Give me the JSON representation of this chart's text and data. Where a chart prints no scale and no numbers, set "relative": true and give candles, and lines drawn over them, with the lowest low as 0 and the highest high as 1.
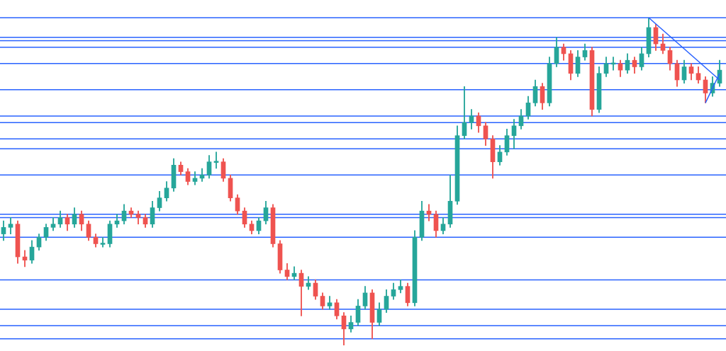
{
  "chart_data": {
    "type": "candlestick",
    "relative": true,
    "legend": false,
    "marker": "none",
    "categories": [
      null,
      null,
      null,
      null,
      null,
      null,
      null,
      null,
      null,
      null,
      null,
      null,
      null,
      null,
      null,
      null,
      null,
      null,
      null,
      null,
      null,
      null,
      null,
      null,
      null,
      null,
      null,
      null,
      null,
      null,
      null,
      null,
      null,
      null,
      null,
      null,
      null,
      null,
      null,
      null,
      null,
      null,
      null,
      null,
      null,
      null,
      null,
      null,
      null,
      null,
      null,
      null,
      null,
      null,
      null,
      null,
      null,
      null,
      null,
      null,
      null,
      null,
      null,
      null,
      null,
      null,
      null,
      null,
      null,
      null,
      null,
      null,
      null,
      null,
      null,
      null,
      null,
      null,
      null,
      null,
      null,
      null,
      null,
      null,
      null,
      null,
      null,
      null,
      null,
      null,
      null,
      null,
      null,
      null,
      null,
      null,
      null,
      null,
      null,
      null,
      null,
      null
    ],
    "series": [
      {
        "type": "candlestick",
        "ohlc": [
          [
            0.34,
            0.38,
            0.32,
            0.36
          ],
          [
            0.36,
            0.39,
            0.34,
            0.37
          ],
          [
            0.37,
            0.38,
            0.25,
            0.27
          ],
          [
            0.27,
            0.29,
            0.24,
            0.26
          ],
          [
            0.26,
            0.32,
            0.25,
            0.3
          ],
          [
            0.3,
            0.34,
            0.29,
            0.33
          ],
          [
            0.33,
            0.37,
            0.32,
            0.36
          ],
          [
            0.36,
            0.39,
            0.35,
            0.37
          ],
          [
            0.37,
            0.41,
            0.36,
            0.39
          ],
          [
            0.39,
            0.4,
            0.35,
            0.37
          ],
          [
            0.37,
            0.42,
            0.36,
            0.4
          ],
          [
            0.4,
            0.41,
            0.35,
            0.37
          ],
          [
            0.37,
            0.38,
            0.32,
            0.33
          ],
          [
            0.33,
            0.34,
            0.3,
            0.31
          ],
          [
            0.31,
            0.33,
            0.3,
            0.31
          ],
          [
            0.31,
            0.38,
            0.3,
            0.37
          ],
          [
            0.37,
            0.4,
            0.36,
            0.38
          ],
          [
            0.38,
            0.43,
            0.37,
            0.41
          ],
          [
            0.41,
            0.42,
            0.39,
            0.4
          ],
          [
            0.4,
            0.41,
            0.37,
            0.39
          ],
          [
            0.39,
            0.4,
            0.36,
            0.37
          ],
          [
            0.37,
            0.44,
            0.36,
            0.42
          ],
          [
            0.42,
            0.47,
            0.41,
            0.45
          ],
          [
            0.45,
            0.5,
            0.44,
            0.48
          ],
          [
            0.48,
            0.57,
            0.47,
            0.55
          ],
          [
            0.55,
            0.56,
            0.52,
            0.53
          ],
          [
            0.53,
            0.54,
            0.49,
            0.5
          ],
          [
            0.5,
            0.53,
            0.49,
            0.51
          ],
          [
            0.51,
            0.54,
            0.5,
            0.52
          ],
          [
            0.52,
            0.58,
            0.51,
            0.56
          ],
          [
            0.56,
            0.59,
            0.54,
            0.56
          ],
          [
            0.56,
            0.57,
            0.5,
            0.51
          ],
          [
            0.51,
            0.52,
            0.44,
            0.45
          ],
          [
            0.45,
            0.46,
            0.4,
            0.41
          ],
          [
            0.41,
            0.42,
            0.36,
            0.37
          ],
          [
            0.37,
            0.38,
            0.34,
            0.35
          ],
          [
            0.35,
            0.39,
            0.34,
            0.38
          ],
          [
            0.38,
            0.44,
            0.37,
            0.42
          ],
          [
            0.42,
            0.43,
            0.3,
            0.31
          ],
          [
            0.31,
            0.32,
            0.22,
            0.23
          ],
          [
            0.23,
            0.25,
            0.2,
            0.21
          ],
          [
            0.21,
            0.24,
            0.2,
            0.22
          ],
          [
            0.22,
            0.23,
            0.09,
            0.18
          ],
          [
            0.18,
            0.21,
            0.17,
            0.19
          ],
          [
            0.19,
            0.2,
            0.14,
            0.15
          ],
          [
            0.15,
            0.16,
            0.11,
            0.12
          ],
          [
            0.12,
            0.15,
            0.11,
            0.13
          ],
          [
            0.13,
            0.14,
            0.08,
            0.09
          ],
          [
            0.09,
            0.1,
            0.0,
            0.05
          ],
          [
            0.05,
            0.09,
            0.04,
            0.07
          ],
          [
            0.07,
            0.14,
            0.06,
            0.12
          ],
          [
            0.12,
            0.18,
            0.11,
            0.16
          ],
          [
            0.16,
            0.17,
            0.02,
            0.07
          ],
          [
            0.07,
            0.13,
            0.06,
            0.11
          ],
          [
            0.11,
            0.17,
            0.1,
            0.15
          ],
          [
            0.15,
            0.19,
            0.14,
            0.17
          ],
          [
            0.17,
            0.2,
            0.16,
            0.18
          ],
          [
            0.18,
            0.19,
            0.12,
            0.13
          ],
          [
            0.13,
            0.35,
            0.12,
            0.33
          ],
          [
            0.33,
            0.44,
            0.32,
            0.41
          ],
          [
            0.41,
            0.43,
            0.38,
            0.4
          ],
          [
            0.4,
            0.41,
            0.33,
            0.35
          ],
          [
            0.35,
            0.39,
            0.34,
            0.37
          ],
          [
            0.37,
            0.52,
            0.36,
            0.44
          ],
          [
            0.44,
            0.67,
            0.43,
            0.64
          ],
          [
            0.64,
            0.79,
            0.63,
            0.68
          ],
          [
            0.68,
            0.72,
            0.66,
            0.7
          ],
          [
            0.7,
            0.71,
            0.65,
            0.67
          ],
          [
            0.67,
            0.68,
            0.61,
            0.63
          ],
          [
            0.63,
            0.64,
            0.51,
            0.56
          ],
          [
            0.56,
            0.61,
            0.55,
            0.59
          ],
          [
            0.59,
            0.66,
            0.58,
            0.64
          ],
          [
            0.64,
            0.69,
            0.6,
            0.67
          ],
          [
            0.67,
            0.72,
            0.66,
            0.7
          ],
          [
            0.7,
            0.76,
            0.69,
            0.74
          ],
          [
            0.74,
            0.81,
            0.73,
            0.79
          ],
          [
            0.79,
            0.8,
            0.72,
            0.74
          ],
          [
            0.74,
            0.88,
            0.73,
            0.86
          ],
          [
            0.86,
            0.94,
            0.85,
            0.91
          ],
          [
            0.91,
            0.92,
            0.87,
            0.89
          ],
          [
            0.89,
            0.9,
            0.81,
            0.83
          ],
          [
            0.83,
            0.9,
            0.82,
            0.88
          ],
          [
            0.88,
            0.92,
            0.87,
            0.9
          ],
          [
            0.9,
            0.91,
            0.7,
            0.72
          ],
          [
            0.72,
            0.85,
            0.71,
            0.83
          ],
          [
            0.83,
            0.88,
            0.82,
            0.86
          ],
          [
            0.86,
            0.88,
            0.84,
            0.86
          ],
          [
            0.86,
            0.87,
            0.82,
            0.84
          ],
          [
            0.84,
            0.89,
            0.83,
            0.87
          ],
          [
            0.87,
            0.88,
            0.83,
            0.85
          ],
          [
            0.85,
            0.91,
            0.84,
            0.89
          ],
          [
            0.89,
            1.0,
            0.88,
            0.97
          ],
          [
            0.97,
            0.98,
            0.9,
            0.92
          ],
          [
            0.92,
            0.95,
            0.89,
            0.9
          ],
          [
            0.9,
            0.91,
            0.84,
            0.86
          ],
          [
            0.86,
            0.87,
            0.79,
            0.81
          ],
          [
            0.81,
            0.87,
            0.8,
            0.85
          ],
          [
            0.85,
            0.86,
            0.81,
            0.83
          ],
          [
            0.83,
            0.85,
            0.8,
            0.81
          ],
          [
            0.81,
            0.82,
            0.74,
            0.77
          ],
          [
            0.77,
            0.82,
            0.76,
            0.8
          ],
          [
            0.8,
            0.87,
            0.79,
            0.84
          ]
        ],
        "colors": [
          "#26a69a",
          "#26a69a",
          "#ef5350",
          "#ef5350",
          "#26a69a",
          "#26a69a",
          "#26a69a",
          "#26a69a",
          "#26a69a",
          "#ef5350",
          "#26a69a",
          "#ef5350",
          "#ef5350",
          "#ef5350",
          "#26a69a",
          "#26a69a",
          "#26a69a",
          "#26a69a",
          "#ef5350",
          "#ef5350",
          "#ef5350",
          "#26a69a",
          "#26a69a",
          "#26a69a",
          "#26a69a",
          "#ef5350",
          "#ef5350",
          "#26a69a",
          "#26a69a",
          "#26a69a",
          "#26a69a",
          "#ef5350",
          "#ef5350",
          "#ef5350",
          "#ef5350",
          "#ef5350",
          "#26a69a",
          "#26a69a",
          "#ef5350",
          "#ef5350",
          "#ef5350",
          "#26a69a",
          "#ef5350",
          "#26a69a",
          "#ef5350",
          "#ef5350",
          "#26a69a",
          "#ef5350",
          "#ef5350",
          "#26a69a",
          "#26a69a",
          "#26a69a",
          "#ef5350",
          "#26a69a",
          "#26a69a",
          "#26a69a",
          "#26a69a",
          "#ef5350",
          "#26a69a",
          "#26a69a",
          "#ef5350",
          "#ef5350",
          "#26a69a",
          "#26a69a",
          "#26a69a",
          "#26a69a",
          "#26a69a",
          "#ef5350",
          "#ef5350",
          "#ef5350",
          "#26a69a",
          "#26a69a",
          "#26a69a",
          "#26a69a",
          "#26a69a",
          "#26a69a",
          "#ef5350",
          "#26a69a",
          "#26a69a",
          "#ef5350",
          "#ef5350",
          "#26a69a",
          "#26a69a",
          "#ef5350",
          "#26a69a",
          "#26a69a",
          "#26a69a",
          "#ef5350",
          "#26a69a",
          "#ef5350",
          "#26a69a",
          "#26a69a",
          "#ef5350",
          "#ef5350",
          "#ef5350",
          "#ef5350",
          "#26a69a",
          "#ef5350",
          "#ef5350",
          "#ef5350",
          "#26a69a",
          "#26a69a"
        ]
      },
      {
        "type": "line",
        "color": "#2962ff",
        "values": [
          null,
          null,
          null,
          null,
          null,
          null,
          null,
          null,
          null,
          null,
          null,
          null,
          null,
          null,
          null,
          null,
          null,
          null,
          null,
          null,
          null,
          null,
          null,
          null,
          null,
          null,
          null,
          null,
          null,
          null,
          null,
          null,
          null,
          null,
          null,
          null,
          null,
          null,
          null,
          null,
          null,
          null,
          null,
          null,
          null,
          null,
          null,
          null,
          null,
          null,
          null,
          null,
          null,
          null,
          null,
          null,
          null,
          null,
          null,
          null,
          null,
          null,
          null,
          null,
          null,
          null,
          null,
          null,
          null,
          null,
          null,
          null,
          null,
          null,
          null,
          null,
          null,
          null,
          null,
          null,
          null,
          null,
          null,
          null,
          null,
          null,
          null,
          null,
          null,
          null,
          null,
          1.0,
          null,
          null,
          null,
          null,
          null,
          null,
          null,
          null,
          null,
          0.81
        ]
      },
      {
        "type": "line",
        "color": "#2962ff",
        "values": [
          null,
          null,
          null,
          null,
          null,
          null,
          null,
          null,
          null,
          null,
          null,
          null,
          null,
          null,
          null,
          null,
          null,
          null,
          null,
          null,
          null,
          null,
          null,
          null,
          null,
          null,
          null,
          null,
          null,
          null,
          null,
          null,
          null,
          null,
          null,
          null,
          null,
          null,
          null,
          null,
          null,
          null,
          null,
          null,
          null,
          null,
          null,
          null,
          null,
          null,
          null,
          null,
          null,
          null,
          null,
          null,
          null,
          null,
          null,
          null,
          null,
          null,
          null,
          null,
          null,
          null,
          null,
          null,
          null,
          null,
          null,
          null,
          null,
          null,
          null,
          null,
          null,
          null,
          null,
          null,
          null,
          null,
          null,
          null,
          null,
          null,
          null,
          null,
          null,
          null,
          null,
          null,
          null,
          null,
          null,
          null,
          null,
          null,
          null,
          0.74,
          null,
          0.83
        ]
      }
    ],
    "ref_lines": [
      {
        "axis": "y",
        "value": 1.0,
        "color": "#2962ff"
      },
      {
        "axis": "y",
        "value": 0.94,
        "color": "#2962ff"
      },
      {
        "axis": "y",
        "value": 0.93,
        "color": "#2962ff"
      },
      {
        "axis": "y",
        "value": 0.91,
        "color": "#2962ff"
      },
      {
        "axis": "y",
        "value": 0.86,
        "color": "#2962ff"
      },
      {
        "axis": "y",
        "value": 0.78,
        "color": "#2962ff"
      },
      {
        "axis": "y",
        "value": 0.7,
        "color": "#2962ff"
      },
      {
        "axis": "y",
        "value": 0.68,
        "color": "#2962ff"
      },
      {
        "axis": "y",
        "value": 0.63,
        "color": "#2962ff"
      },
      {
        "axis": "y",
        "value": 0.6,
        "color": "#2962ff"
      },
      {
        "axis": "y",
        "value": 0.52,
        "color": "#2962ff"
      },
      {
        "axis": "y",
        "value": 0.4,
        "color": "#2962ff"
      },
      {
        "axis": "y",
        "value": 0.39,
        "color": "#2962ff"
      },
      {
        "axis": "y",
        "value": 0.33,
        "color": "#2962ff"
      },
      {
        "axis": "y",
        "value": 0.2,
        "color": "#2962ff"
      },
      {
        "axis": "y",
        "value": 0.11,
        "color": "#2962ff"
      },
      {
        "axis": "y",
        "value": 0.06,
        "color": "#2962ff"
      },
      {
        "axis": "y",
        "value": 0.02,
        "color": "#2962ff"
      }
    ]
  }
}
